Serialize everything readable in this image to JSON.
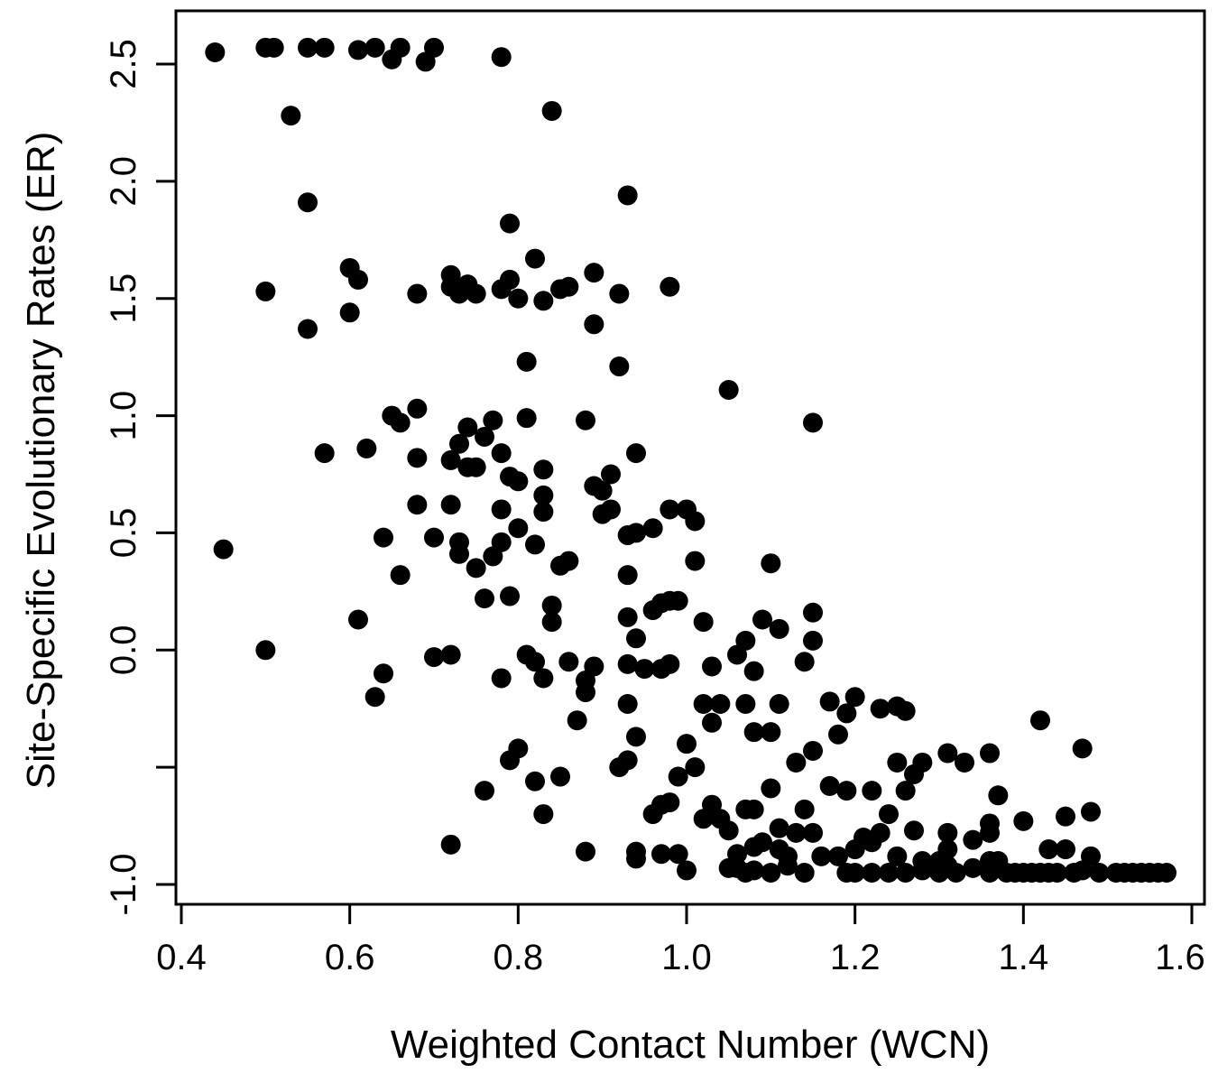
{
  "chart_data": {
    "type": "scatter",
    "title": "",
    "xlabel": "Weighted Contact Number (WCN)",
    "ylabel": "Site-Specific Evolutionary Rates (ER)",
    "xlim": [
      0.4,
      1.6
    ],
    "ylim": [
      -1.15,
      2.7
    ],
    "xticks": [
      0.4,
      0.6,
      0.8,
      1.0,
      1.2,
      1.4,
      1.6
    ],
    "xtick_labels": [
      "0.4",
      "0.6",
      "0.8",
      "1.0",
      "1.2",
      "1.4",
      "1.6"
    ],
    "yticks": [
      -1.0,
      -0.5,
      0.0,
      0.5,
      1.0,
      1.5,
      2.0,
      2.5
    ],
    "ytick_labels": [
      "-1.0",
      "",
      "0.0",
      "0.5",
      "1.0",
      "1.5",
      "2.0",
      "2.5"
    ],
    "grid": false,
    "legend": "none",
    "marker_color": "#000000",
    "points": [
      [
        0.44,
        2.55
      ],
      [
        0.5,
        2.57
      ],
      [
        0.51,
        2.57
      ],
      [
        0.55,
        2.57
      ],
      [
        0.57,
        2.57
      ],
      [
        0.61,
        2.56
      ],
      [
        0.63,
        2.57
      ],
      [
        0.65,
        2.52
      ],
      [
        0.66,
        2.57
      ],
      [
        0.69,
        2.51
      ],
      [
        0.7,
        2.57
      ],
      [
        0.78,
        2.53
      ],
      [
        0.53,
        2.28
      ],
      [
        0.84,
        2.3
      ],
      [
        0.55,
        1.91
      ],
      [
        0.93,
        1.94
      ],
      [
        0.79,
        1.82
      ],
      [
        0.82,
        1.67
      ],
      [
        0.6,
        1.63
      ],
      [
        0.61,
        1.58
      ],
      [
        0.5,
        1.53
      ],
      [
        0.68,
        1.52
      ],
      [
        0.72,
        1.6
      ],
      [
        0.72,
        1.55
      ],
      [
        0.73,
        1.52
      ],
      [
        0.74,
        1.56
      ],
      [
        0.75,
        1.52
      ],
      [
        0.78,
        1.54
      ],
      [
        0.79,
        1.58
      ],
      [
        0.8,
        1.5
      ],
      [
        0.83,
        1.49
      ],
      [
        0.85,
        1.54
      ],
      [
        0.86,
        1.55
      ],
      [
        0.89,
        1.61
      ],
      [
        0.92,
        1.52
      ],
      [
        0.98,
        1.55
      ],
      [
        0.6,
        1.44
      ],
      [
        0.55,
        1.37
      ],
      [
        0.89,
        1.39
      ],
      [
        0.81,
        1.23
      ],
      [
        0.92,
        1.21
      ],
      [
        1.05,
        1.11
      ],
      [
        0.68,
        1.03
      ],
      [
        0.65,
        1.0
      ],
      [
        0.66,
        0.97
      ],
      [
        0.77,
        0.98
      ],
      [
        0.81,
        0.99
      ],
      [
        0.88,
        0.98
      ],
      [
        1.15,
        0.97
      ],
      [
        0.74,
        0.95
      ],
      [
        0.76,
        0.91
      ],
      [
        0.73,
        0.88
      ],
      [
        0.57,
        0.84
      ],
      [
        0.62,
        0.86
      ],
      [
        0.78,
        0.84
      ],
      [
        0.94,
        0.84
      ],
      [
        0.68,
        0.82
      ],
      [
        0.72,
        0.81
      ],
      [
        0.74,
        0.78
      ],
      [
        0.75,
        0.78
      ],
      [
        0.79,
        0.74
      ],
      [
        0.8,
        0.72
      ],
      [
        0.83,
        0.77
      ],
      [
        0.91,
        0.75
      ],
      [
        0.83,
        0.66
      ],
      [
        0.89,
        0.7
      ],
      [
        0.9,
        0.68
      ],
      [
        0.68,
        0.62
      ],
      [
        0.72,
        0.62
      ],
      [
        0.78,
        0.6
      ],
      [
        0.83,
        0.59
      ],
      [
        0.98,
        0.6
      ],
      [
        1.0,
        0.6
      ],
      [
        0.9,
        0.58
      ],
      [
        0.91,
        0.6
      ],
      [
        1.01,
        0.55
      ],
      [
        0.8,
        0.52
      ],
      [
        0.96,
        0.52
      ],
      [
        0.94,
        0.5
      ],
      [
        0.93,
        0.49
      ],
      [
        0.64,
        0.48
      ],
      [
        0.7,
        0.48
      ],
      [
        0.73,
        0.46
      ],
      [
        0.78,
        0.46
      ],
      [
        0.82,
        0.45
      ],
      [
        0.45,
        0.43
      ],
      [
        0.73,
        0.41
      ],
      [
        0.77,
        0.4
      ],
      [
        1.01,
        0.38
      ],
      [
        1.1,
        0.37
      ],
      [
        0.75,
        0.35
      ],
      [
        0.85,
        0.36
      ],
      [
        0.86,
        0.38
      ],
      [
        0.66,
        0.32
      ],
      [
        0.93,
        0.32
      ],
      [
        0.79,
        0.23
      ],
      [
        0.76,
        0.22
      ],
      [
        0.97,
        0.2
      ],
      [
        0.98,
        0.21
      ],
      [
        0.99,
        0.21
      ],
      [
        0.96,
        0.17
      ],
      [
        0.84,
        0.19
      ],
      [
        0.84,
        0.12
      ],
      [
        0.61,
        0.13
      ],
      [
        0.93,
        0.14
      ],
      [
        1.02,
        0.12
      ],
      [
        1.09,
        0.13
      ],
      [
        1.11,
        0.09
      ],
      [
        1.15,
        0.16
      ],
      [
        0.94,
        0.05
      ],
      [
        1.07,
        0.04
      ],
      [
        1.15,
        0.04
      ],
      [
        0.5,
        0.0
      ],
      [
        0.7,
        -0.03
      ],
      [
        0.72,
        -0.02
      ],
      [
        0.81,
        -0.02
      ],
      [
        0.82,
        -0.05
      ],
      [
        0.86,
        -0.05
      ],
      [
        0.89,
        -0.07
      ],
      [
        0.93,
        -0.06
      ],
      [
        0.95,
        -0.08
      ],
      [
        0.97,
        -0.08
      ],
      [
        0.98,
        -0.06
      ],
      [
        1.03,
        -0.07
      ],
      [
        1.06,
        -0.02
      ],
      [
        1.08,
        -0.09
      ],
      [
        1.14,
        -0.05
      ],
      [
        0.64,
        -0.1
      ],
      [
        0.78,
        -0.12
      ],
      [
        0.83,
        -0.12
      ],
      [
        0.88,
        -0.13
      ],
      [
        0.88,
        -0.18
      ],
      [
        0.63,
        -0.2
      ],
      [
        0.93,
        -0.23
      ],
      [
        1.02,
        -0.23
      ],
      [
        1.04,
        -0.23
      ],
      [
        1.07,
        -0.23
      ],
      [
        1.11,
        -0.23
      ],
      [
        1.17,
        -0.22
      ],
      [
        1.2,
        -0.2
      ],
      [
        1.19,
        -0.27
      ],
      [
        1.23,
        -0.25
      ],
      [
        1.25,
        -0.24
      ],
      [
        1.26,
        -0.26
      ],
      [
        0.87,
        -0.3
      ],
      [
        1.03,
        -0.31
      ],
      [
        1.08,
        -0.35
      ],
      [
        1.1,
        -0.35
      ],
      [
        1.42,
        -0.3
      ],
      [
        0.94,
        -0.37
      ],
      [
        1.0,
        -0.4
      ],
      [
        0.8,
        -0.42
      ],
      [
        0.79,
        -0.47
      ],
      [
        0.93,
        -0.47
      ],
      [
        0.92,
        -0.5
      ],
      [
        1.01,
        -0.5
      ],
      [
        1.18,
        -0.36
      ],
      [
        1.15,
        -0.43
      ],
      [
        1.31,
        -0.44
      ],
      [
        1.36,
        -0.44
      ],
      [
        1.47,
        -0.42
      ],
      [
        1.13,
        -0.48
      ],
      [
        1.25,
        -0.48
      ],
      [
        1.28,
        -0.48
      ],
      [
        1.33,
        -0.48
      ],
      [
        0.99,
        -0.54
      ],
      [
        1.27,
        -0.53
      ],
      [
        0.82,
        -0.56
      ],
      [
        0.85,
        -0.54
      ],
      [
        0.76,
        -0.6
      ],
      [
        1.1,
        -0.59
      ],
      [
        1.17,
        -0.58
      ],
      [
        1.19,
        -0.6
      ],
      [
        1.22,
        -0.6
      ],
      [
        1.26,
        -0.6
      ],
      [
        1.37,
        -0.62
      ],
      [
        0.97,
        -0.66
      ],
      [
        0.98,
        -0.65
      ],
      [
        1.03,
        -0.66
      ],
      [
        1.07,
        -0.68
      ],
      [
        1.08,
        -0.68
      ],
      [
        1.14,
        -0.68
      ],
      [
        0.83,
        -0.7
      ],
      [
        0.96,
        -0.7
      ],
      [
        1.02,
        -0.72
      ],
      [
        1.04,
        -0.72
      ],
      [
        1.24,
        -0.7
      ],
      [
        1.4,
        -0.73
      ],
      [
        1.45,
        -0.71
      ],
      [
        1.48,
        -0.69
      ],
      [
        1.05,
        -0.77
      ],
      [
        1.11,
        -0.76
      ],
      [
        1.13,
        -0.78
      ],
      [
        1.15,
        -0.78
      ],
      [
        1.21,
        -0.8
      ],
      [
        1.23,
        -0.78
      ],
      [
        1.27,
        -0.77
      ],
      [
        1.31,
        -0.78
      ],
      [
        1.36,
        -0.74
      ],
      [
        1.34,
        -0.81
      ],
      [
        1.36,
        -0.78
      ],
      [
        0.72,
        -0.83
      ],
      [
        0.88,
        -0.86
      ],
      [
        0.94,
        -0.86
      ],
      [
        0.97,
        -0.87
      ],
      [
        0.99,
        -0.87
      ],
      [
        1.06,
        -0.87
      ],
      [
        1.08,
        -0.84
      ],
      [
        1.09,
        -0.82
      ],
      [
        1.11,
        -0.85
      ],
      [
        1.12,
        -0.88
      ],
      [
        1.16,
        -0.88
      ],
      [
        1.18,
        -0.88
      ],
      [
        1.2,
        -0.85
      ],
      [
        1.22,
        -0.82
      ],
      [
        1.25,
        -0.88
      ],
      [
        1.28,
        -0.9
      ],
      [
        1.3,
        -0.9
      ],
      [
        1.31,
        -0.85
      ],
      [
        1.36,
        -0.9
      ],
      [
        1.37,
        -0.9
      ],
      [
        1.43,
        -0.85
      ],
      [
        1.45,
        -0.85
      ],
      [
        1.48,
        -0.88
      ],
      [
        0.94,
        -0.89
      ],
      [
        1.0,
        -0.94
      ],
      [
        1.05,
        -0.93
      ],
      [
        1.06,
        -0.93
      ],
      [
        1.07,
        -0.95
      ],
      [
        1.08,
        -0.94
      ],
      [
        1.1,
        -0.95
      ],
      [
        1.12,
        -0.92
      ],
      [
        1.14,
        -0.95
      ],
      [
        1.19,
        -0.95
      ],
      [
        1.2,
        -0.95
      ],
      [
        1.22,
        -0.95
      ],
      [
        1.24,
        -0.95
      ],
      [
        1.26,
        -0.95
      ],
      [
        1.28,
        -0.94
      ],
      [
        1.3,
        -0.95
      ],
      [
        1.31,
        -0.92
      ],
      [
        1.32,
        -0.95
      ],
      [
        1.34,
        -0.93
      ],
      [
        1.36,
        -0.95
      ],
      [
        1.38,
        -0.95
      ],
      [
        1.39,
        -0.95
      ],
      [
        1.4,
        -0.95
      ],
      [
        1.41,
        -0.95
      ],
      [
        1.42,
        -0.95
      ],
      [
        1.43,
        -0.95
      ],
      [
        1.44,
        -0.95
      ],
      [
        1.46,
        -0.95
      ],
      [
        1.47,
        -0.94
      ],
      [
        1.49,
        -0.95
      ],
      [
        1.51,
        -0.95
      ],
      [
        1.52,
        -0.95
      ],
      [
        1.53,
        -0.95
      ],
      [
        1.54,
        -0.95
      ],
      [
        1.55,
        -0.95
      ],
      [
        1.56,
        -0.95
      ],
      [
        1.57,
        -0.95
      ]
    ]
  }
}
